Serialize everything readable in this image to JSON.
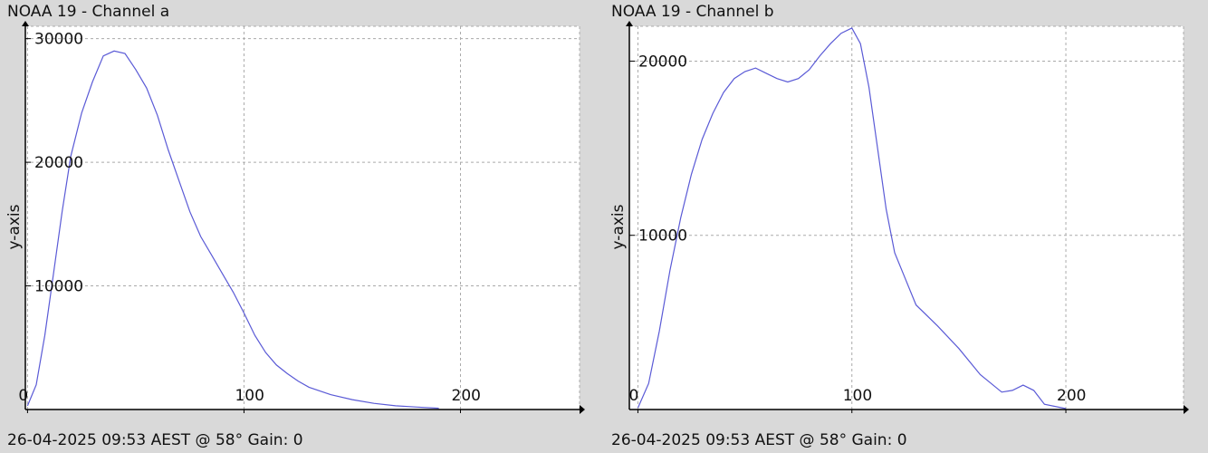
{
  "chart_data": [
    {
      "type": "line",
      "title": "NOAA 19 - Channel a",
      "xlabel": "",
      "ylabel": "y-axis",
      "xlim": [
        -1,
        255
      ],
      "ylim": [
        0,
        31000
      ],
      "xticks": [
        0,
        100,
        200
      ],
      "yticks": [
        10000,
        20000,
        30000
      ],
      "grid": true,
      "line_color": "#5a5ad6",
      "footer": "26-04-2025 09:53 AEST @ 58° Gain: 0",
      "x": [
        0,
        4,
        8,
        12,
        16,
        20,
        25,
        30,
        35,
        40,
        45,
        50,
        55,
        60,
        65,
        70,
        75,
        80,
        85,
        90,
        95,
        100,
        105,
        110,
        115,
        120,
        125,
        130,
        140,
        150,
        160,
        170,
        180,
        190
      ],
      "y": [
        300,
        2000,
        6000,
        11000,
        16000,
        20500,
        24000,
        26500,
        28600,
        29000,
        28800,
        27500,
        26000,
        23800,
        21000,
        18500,
        16000,
        14000,
        12500,
        11000,
        9500,
        7800,
        6000,
        4600,
        3600,
        2900,
        2300,
        1800,
        1200,
        800,
        500,
        300,
        200,
        100
      ]
    },
    {
      "type": "line",
      "title": "NOAA 19 - Channel b",
      "xlabel": "",
      "ylabel": "y-axis",
      "xlim": [
        -4,
        255
      ],
      "ylim": [
        0,
        22000
      ],
      "xticks": [
        0,
        100,
        200
      ],
      "yticks": [
        10000,
        20000
      ],
      "grid": true,
      "line_color": "#5a5ad6",
      "footer": "26-04-2025 09:53 AEST @ 58° Gain: 0",
      "x": [
        0,
        5,
        10,
        15,
        20,
        25,
        30,
        35,
        40,
        45,
        50,
        55,
        60,
        65,
        70,
        75,
        80,
        85,
        90,
        95,
        100,
        104,
        108,
        112,
        116,
        120,
        125,
        130,
        140,
        150,
        160,
        170,
        175,
        180,
        185,
        190,
        200
      ],
      "y": [
        100,
        1500,
        4500,
        8000,
        11000,
        13500,
        15500,
        17000,
        18200,
        19000,
        19400,
        19600,
        19300,
        19000,
        18800,
        19000,
        19500,
        20300,
        21000,
        21600,
        21900,
        21000,
        18500,
        15000,
        11500,
        9000,
        7500,
        6000,
        4800,
        3500,
        2000,
        1000,
        1100,
        1400,
        1100,
        300,
        50
      ]
    }
  ]
}
